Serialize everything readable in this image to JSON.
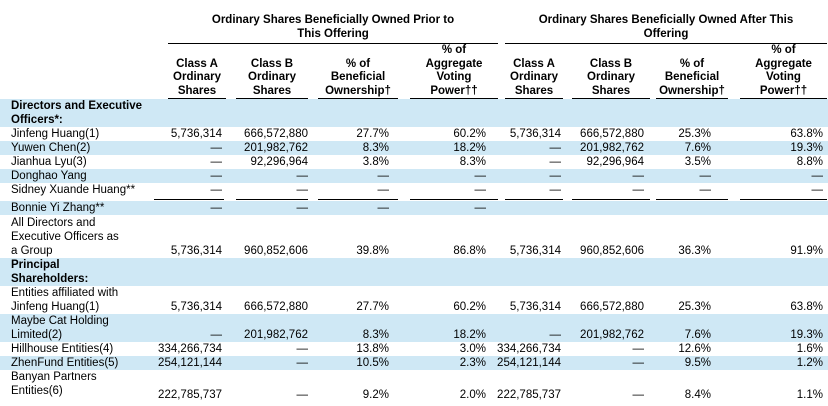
{
  "header": {
    "prior_group": "Ordinary Shares Beneficially Owned Prior to\nThis Offering",
    "after_group": "Ordinary Shares Beneficially Owned After This\nOffering",
    "columns": [
      "Class A\nOrdinary\nShares",
      "Class B\nOrdinary\nShares",
      "% of\nBeneficial\nOwnership†",
      "% of\nAggregate\nVoting\nPower††",
      "Class A\nOrdinary\nShares",
      "Class B\nOrdinary\nShares",
      "% of\nBeneficial\nOwnership†",
      "% of\nAggregate\nVoting\nPower††"
    ]
  },
  "rows": [
    {
      "label": "Directors and Executive\n    Officers*:",
      "bold": true,
      "values": [
        "",
        "",
        "",
        "",
        "",
        "",
        "",
        ""
      ]
    },
    {
      "label": "Jinfeng Huang(1)",
      "values": [
        "5,736,314",
        "666,572,880",
        "27.7%",
        "60.2%",
        "5,736,314",
        "666,572,880",
        "25.3%",
        "63.8%"
      ]
    },
    {
      "label": "Yuwen Chen(2)",
      "values": [
        "—",
        "201,982,762",
        "8.3%",
        "18.2%",
        "—",
        "201,982,762",
        "7.6%",
        "19.3%"
      ]
    },
    {
      "label": "Jianhua Lyu(3)",
      "values": [
        "—",
        "92,296,964",
        "3.8%",
        "8.3%",
        "—",
        "92,296,964",
        "3.5%",
        "8.8%"
      ]
    },
    {
      "label": "Donghao Yang",
      "values": [
        "—",
        "—",
        "—",
        "—",
        "—",
        "—",
        "—",
        "—"
      ]
    },
    {
      "label": "Sidney Xuande Huang**",
      "values": [
        "—",
        "—",
        "—",
        "—",
        "—",
        "—",
        "—",
        "—"
      ]
    },
    {
      "label": "Bonnie Yi Zhang**",
      "values": [
        "—",
        "—",
        "—",
        "—",
        "",
        "",
        "",
        ""
      ]
    },
    {
      "label": "All Directors and\n    Executive Officers as\n    a Group",
      "values": [
        "5,736,314",
        "960,852,606",
        "39.8%",
        "86.8%",
        "5,736,314",
        "960,852,606",
        "36.3%",
        "91.9%"
      ]
    },
    {
      "label": "Principal\n    Shareholders:",
      "bold": true,
      "values": [
        "",
        "",
        "",
        "",
        "",
        "",
        "",
        ""
      ]
    },
    {
      "label": "Entities affiliated with\n    Jinfeng Huang(1)",
      "values": [
        "5,736,314",
        "666,572,880",
        "27.7%",
        "60.2%",
        "5,736,314",
        "666,572,880",
        "25.3%",
        "63.8%"
      ]
    },
    {
      "label": "Maybe Cat Holding\n    Limited(2)",
      "values": [
        "—",
        "201,982,762",
        "8.3%",
        "18.2%",
        "—",
        "201,982,762",
        "7.6%",
        "19.3%"
      ]
    },
    {
      "label": "Hillhouse Entities(4)",
      "values": [
        "334,266,734",
        "—",
        "13.8%",
        "3.0%",
        "334,266,734",
        "—",
        "12.6%",
        "1.6%"
      ]
    },
    {
      "label": "ZhenFund Entities(5)",
      "values": [
        "254,121,144",
        "—",
        "10.5%",
        "2.3%",
        "254,121,144",
        "—",
        "9.5%",
        "1.2%"
      ]
    },
    {
      "label": "Banyan Partners\n    Entities(6)",
      "values": [
        "222,785,737",
        "—",
        "9.2%",
        "2.0%",
        "222,785,737",
        "—",
        "8.4%",
        "1.1%"
      ]
    }
  ]
}
